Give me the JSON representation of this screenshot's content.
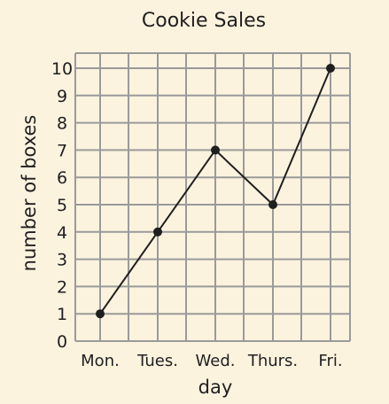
{
  "chart_data": {
    "type": "line",
    "title": "Cookie Sales",
    "xlabel": "day",
    "ylabel": "number of boxes",
    "categories": [
      "Mon.",
      "Tues.",
      "Wed.",
      "Thurs.",
      "Fri."
    ],
    "series": [
      {
        "values": [
          1,
          4,
          7,
          5,
          10
        ]
      }
    ],
    "ylim": [
      0,
      10
    ],
    "yticks": [
      "0",
      "1",
      "2",
      "3",
      "4",
      "5",
      "6",
      "7",
      "8",
      "9",
      "10"
    ],
    "grid": true,
    "colors": {
      "background": "#fcf3df",
      "grid": "#9a9a9a",
      "line": "#1f1f1f",
      "text": "#1f1f1f"
    }
  }
}
